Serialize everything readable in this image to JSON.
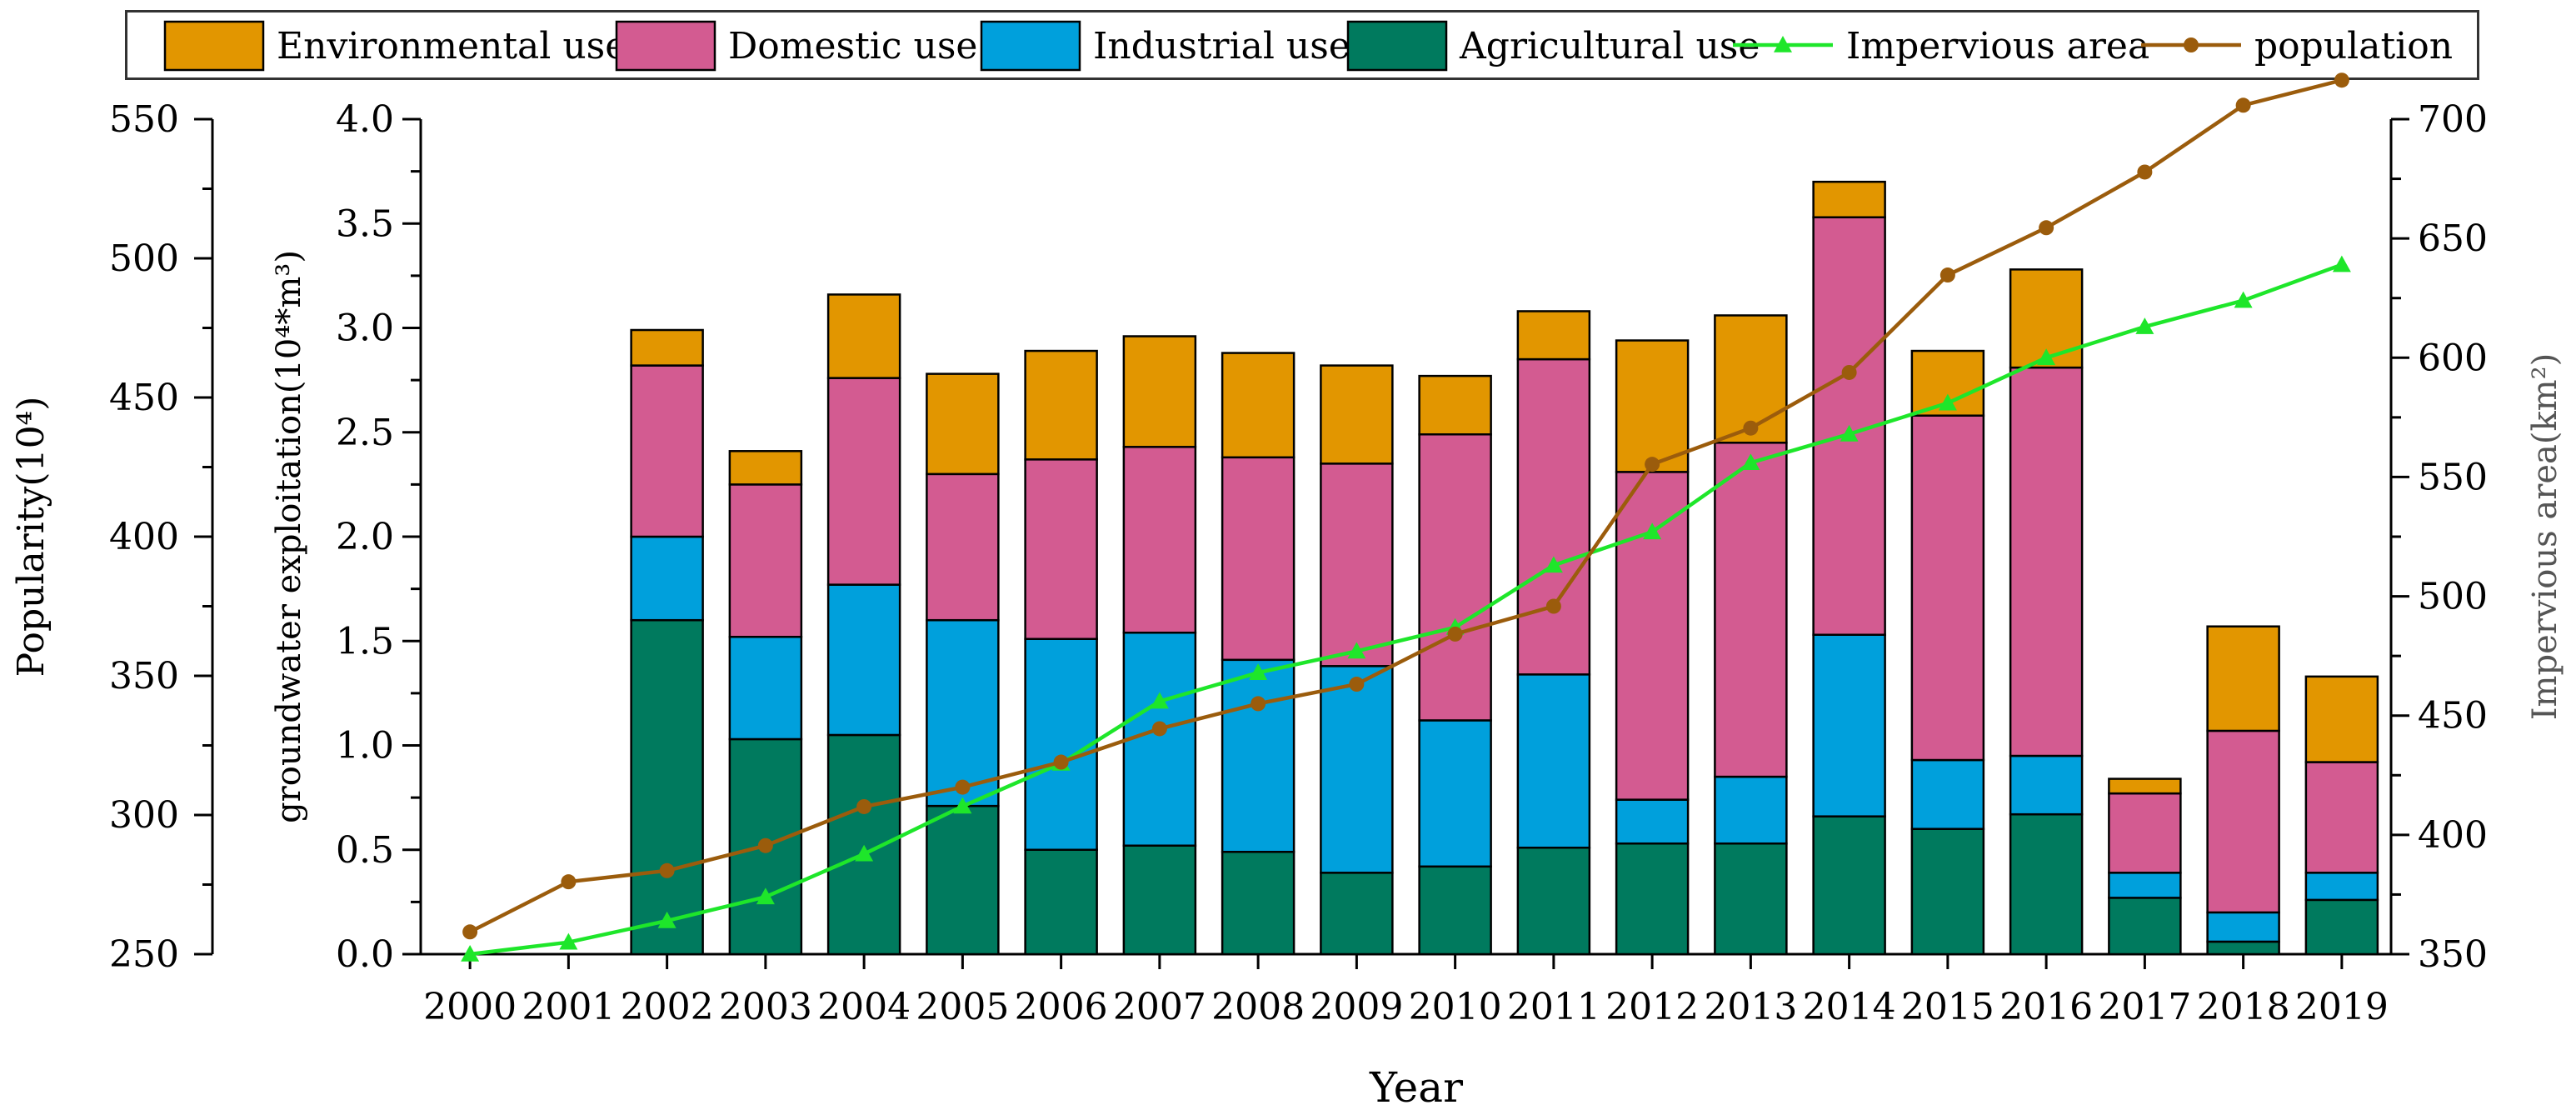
{
  "chart_data": {
    "type": "bar",
    "stacked": true,
    "title": "",
    "xlabel": "Year",
    "ylabel_left_outer": "Popularity(10⁴)",
    "ylabel_left_inner": "groundwater exploitation(10⁴*m³)",
    "ylabel_right": "Impervious area(km²)",
    "categories": [
      "2000",
      "2001",
      "2002",
      "2003",
      "2004",
      "2005",
      "2006",
      "2007",
      "2008",
      "2009",
      "2010",
      "2011",
      "2012",
      "2013",
      "2014",
      "2015",
      "2016",
      "2017",
      "2018",
      "2019"
    ],
    "y_left_outer": {
      "range": [
        250,
        550
      ],
      "ticks": [
        "250",
        "300",
        "350",
        "400",
        "450",
        "500",
        "550"
      ]
    },
    "y_left_inner": {
      "range": [
        0,
        4.0
      ],
      "ticks": [
        "0.0",
        "0.5",
        "1.0",
        "1.5",
        "2.0",
        "2.5",
        "3.0",
        "3.5",
        "4.0"
      ]
    },
    "y_right": {
      "range": [
        350,
        700
      ],
      "ticks": [
        "350",
        "400",
        "450",
        "500",
        "550",
        "600",
        "650",
        "700"
      ]
    },
    "series": [
      {
        "name": "Agricultural use",
        "axis": "left_inner",
        "kind": "bar",
        "color": "#007a5e",
        "values": [
          0,
          0,
          1.6,
          1.03,
          1.05,
          0.71,
          0.5,
          0.52,
          0.49,
          0.39,
          0.42,
          0.51,
          0.53,
          0.53,
          0.66,
          0.6,
          0.67,
          0.27,
          0.06,
          0.26
        ]
      },
      {
        "name": "Industrial use",
        "axis": "left_inner",
        "kind": "bar",
        "color": "#00a0dc",
        "values": [
          0,
          0,
          0.4,
          0.49,
          0.72,
          0.89,
          1.01,
          1.02,
          0.92,
          0.99,
          0.7,
          0.83,
          0.21,
          0.32,
          0.87,
          0.33,
          0.28,
          0.12,
          0.14,
          0.13
        ]
      },
      {
        "name": "Domestic use",
        "axis": "left_inner",
        "kind": "bar",
        "color": "#d35b91",
        "values": [
          0,
          0,
          0.82,
          0.73,
          0.99,
          0.7,
          0.86,
          0.89,
          0.97,
          0.97,
          1.37,
          1.51,
          1.57,
          1.6,
          2.0,
          1.65,
          1.86,
          0.38,
          0.87,
          0.53
        ]
      },
      {
        "name": "Environmental use",
        "axis": "left_inner",
        "kind": "bar",
        "color": "#e29600",
        "values": [
          0,
          0,
          0.17,
          0.16,
          0.4,
          0.48,
          0.52,
          0.53,
          0.5,
          0.47,
          0.28,
          0.23,
          0.63,
          0.61,
          0.17,
          0.31,
          0.47,
          0.07,
          0.5,
          0.41
        ]
      },
      {
        "name": "Impervious area",
        "axis": "right",
        "kind": "line",
        "color": "#1ee62a",
        "marker": "triangle",
        "values": [
          350,
          355,
          364,
          374,
          392,
          412,
          430,
          456,
          468,
          477,
          487,
          513,
          527,
          556,
          568,
          581,
          600,
          613,
          624,
          639
        ]
      },
      {
        "name": "population",
        "axis": "left_outer",
        "kind": "line",
        "color": "#9b5c0c",
        "marker": "circle",
        "values": [
          258,
          276,
          280,
          289,
          303,
          310,
          319,
          331,
          340,
          347,
          365,
          375,
          426,
          439,
          459,
          494,
          511,
          531,
          555,
          564
        ]
      }
    ],
    "legend": {
      "position": "top",
      "entries": [
        "Environmental use",
        "Domestic use",
        "Industrial use",
        "Agricultural use",
        "Impervious area",
        "population"
      ]
    }
  }
}
